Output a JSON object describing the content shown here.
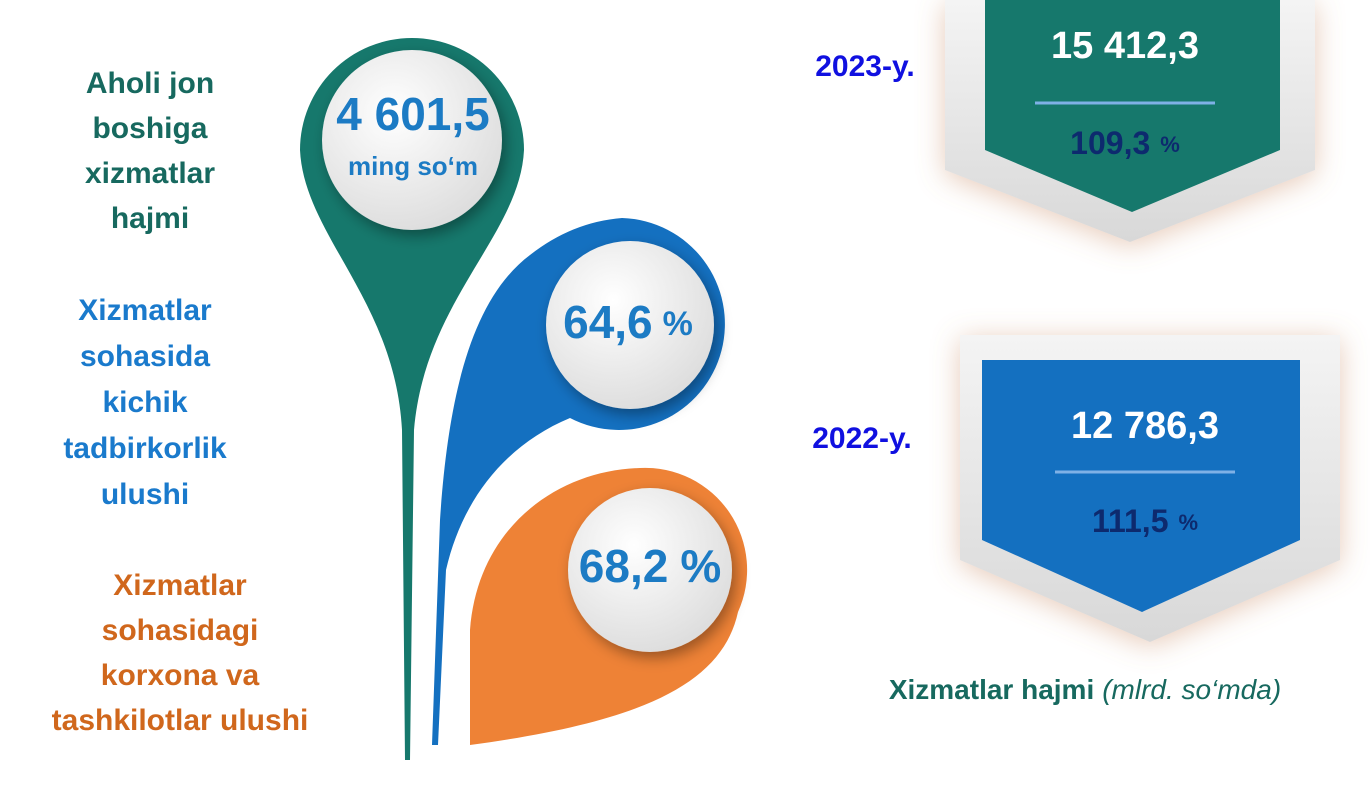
{
  "indicators": [
    {
      "label": [
        "Aholi jon",
        "boshiga",
        "xizmatlar",
        "hajmi"
      ],
      "value": "4 601,5",
      "unit": "ming so‘m"
    },
    {
      "label": [
        "Xizmatlar",
        "sohasida",
        "kichik",
        "tadbirkorlik",
        "ulushi"
      ],
      "value": "64,6",
      "unit": "%"
    },
    {
      "label": [
        "Xizmatlar",
        "sohasidagi",
        "korxona va",
        "tashkilotlar ulushi"
      ],
      "value": "68,2",
      "unit": "%"
    }
  ],
  "volumes": [
    {
      "year": "2023-y.",
      "value": "15 412,3",
      "growth": "109,3",
      "unit": "%"
    },
    {
      "year": "2022-y.",
      "value": "12 786,3",
      "growth": "111,5",
      "unit": "%"
    }
  ],
  "footer": {
    "title": "Xizmatlar hajmi",
    "note": "(mlrd. so‘mda)"
  }
}
